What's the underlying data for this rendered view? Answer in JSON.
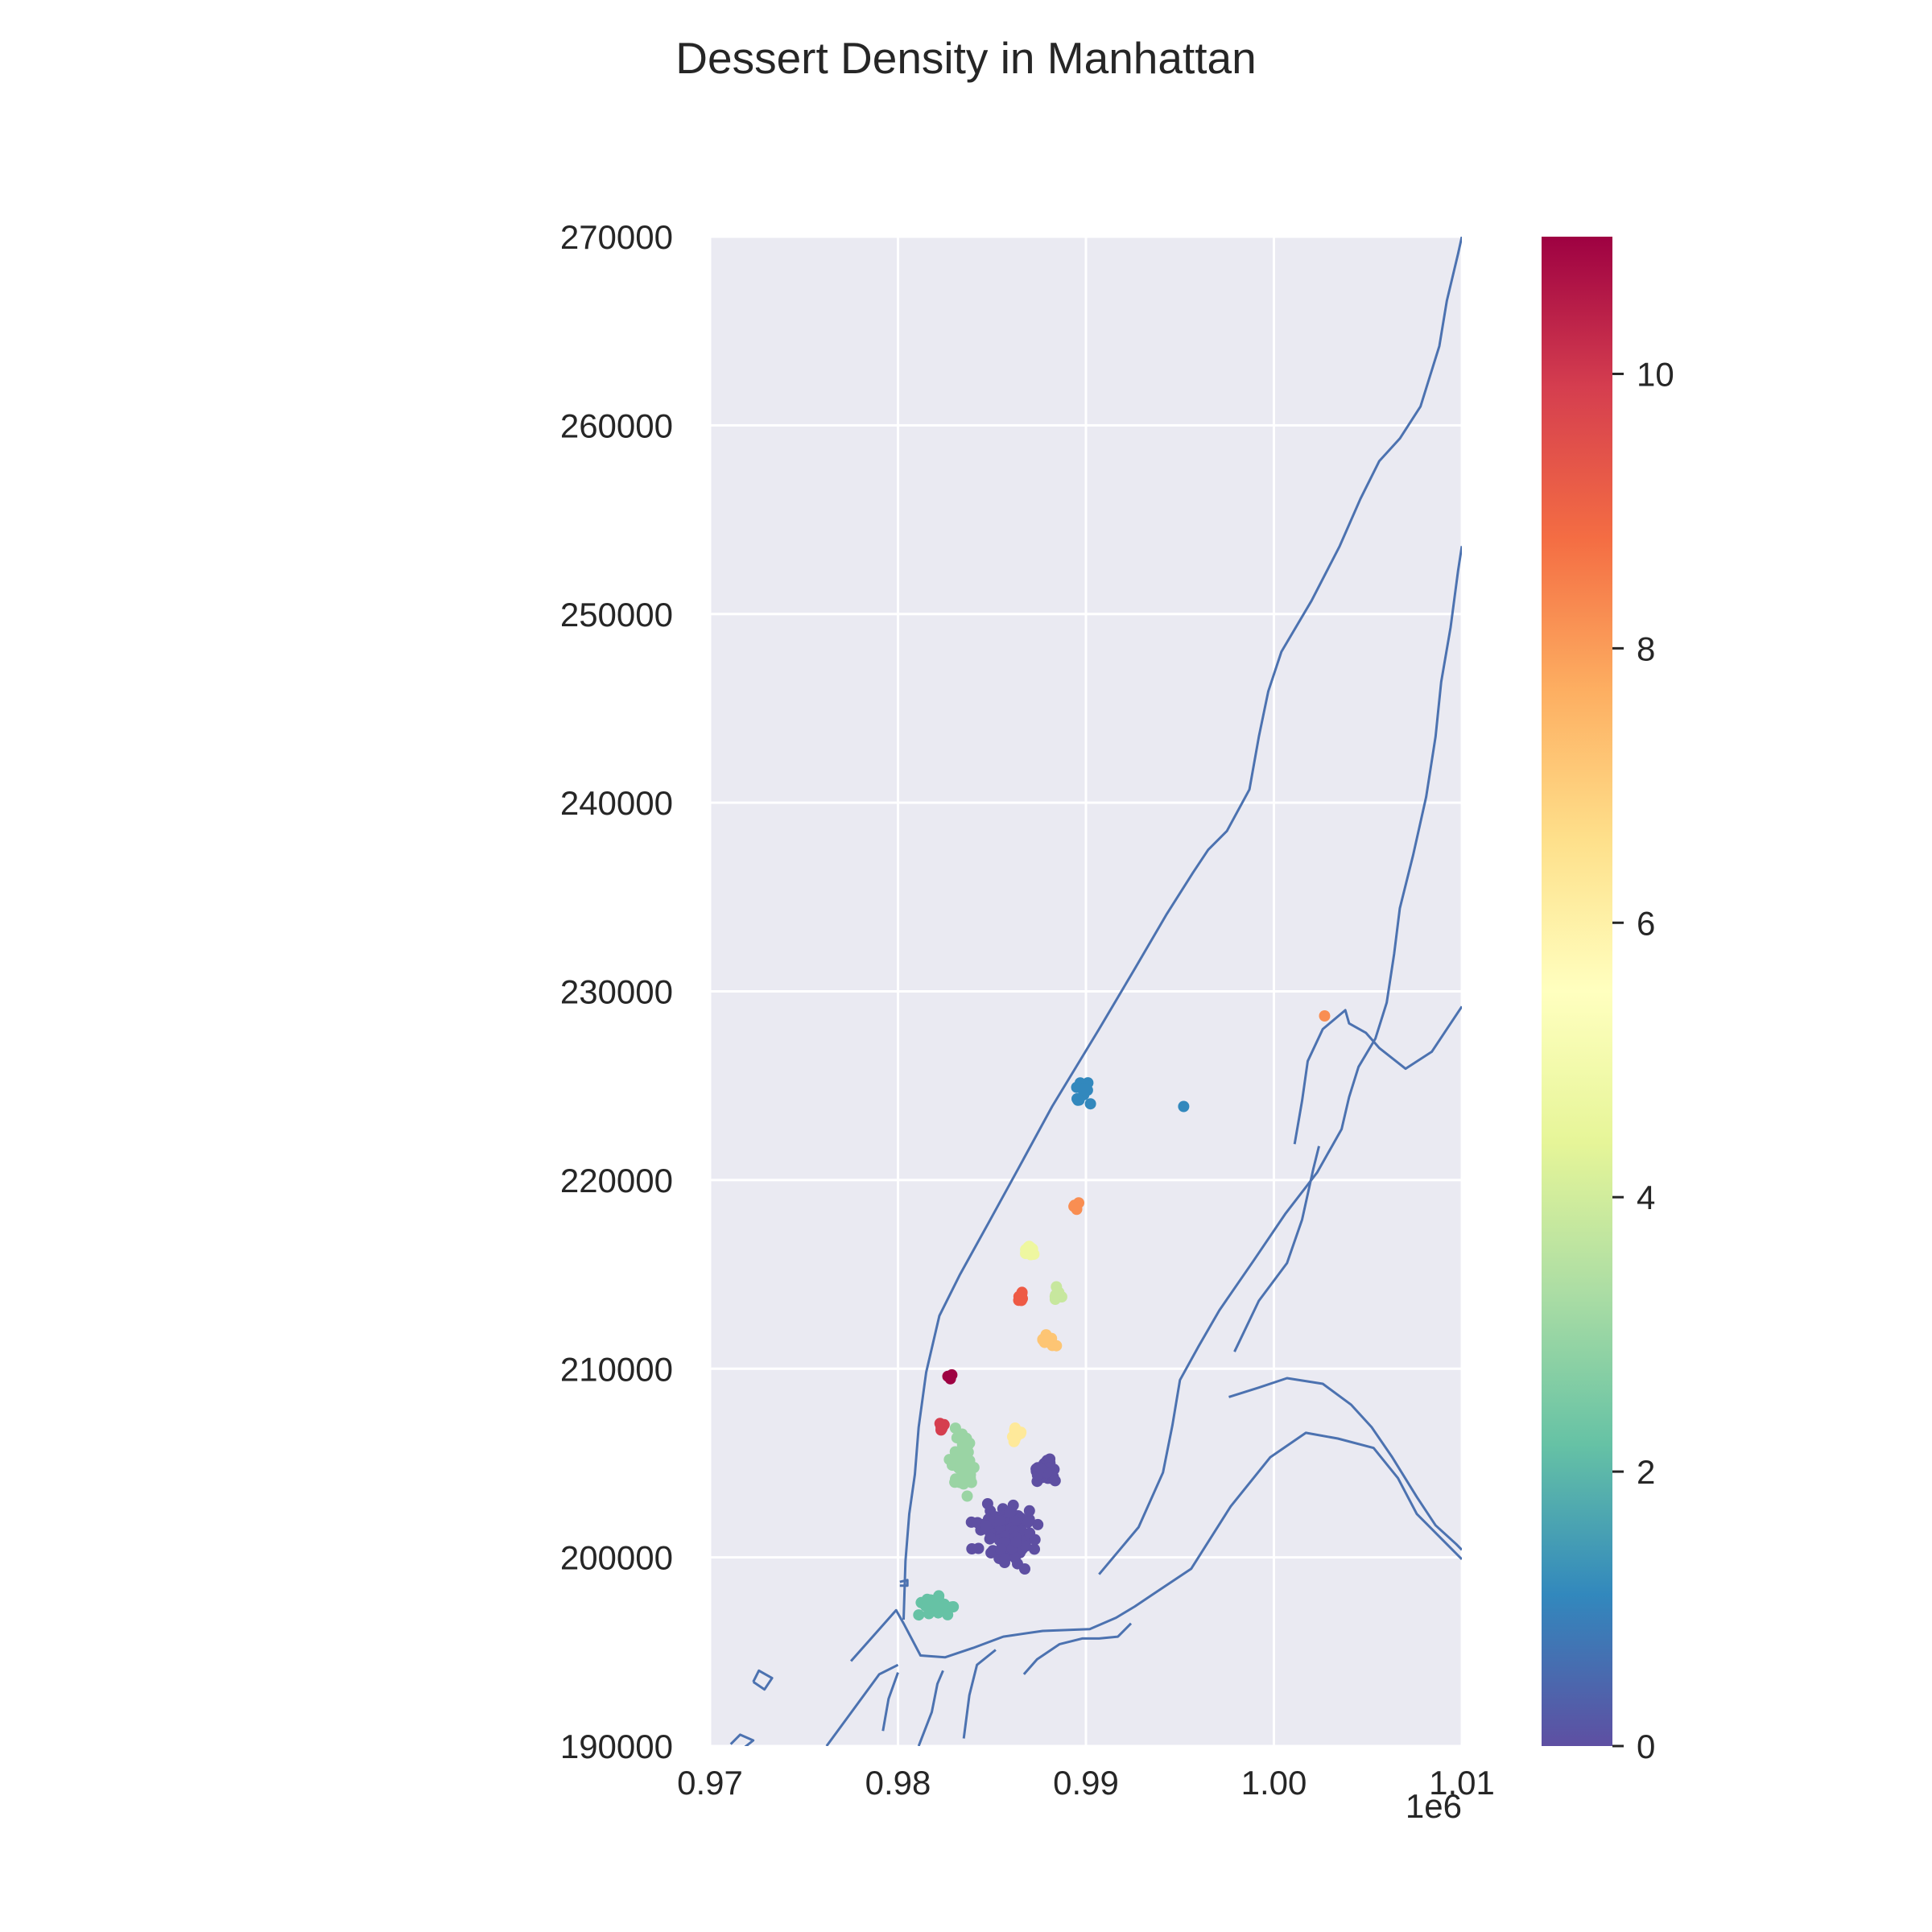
{
  "chart_data": {
    "type": "scatter",
    "title": "Dessert Density in Manhattan",
    "xlabel": "",
    "ylabel": "",
    "x_offset_label": "1e6",
    "xlim": [
      970000,
      1010000
    ],
    "ylim": [
      190000,
      270000
    ],
    "x_ticks": [
      970000,
      980000,
      990000,
      1000000,
      1010000
    ],
    "x_tick_labels": [
      "0.97",
      "0.98",
      "0.99",
      "1.00",
      "1.01"
    ],
    "y_ticks": [
      190000,
      200000,
      210000,
      220000,
      230000,
      240000,
      250000,
      260000,
      270000
    ],
    "y_tick_labels": [
      "190000",
      "200000",
      "210000",
      "220000",
      "230000",
      "240000",
      "250000",
      "260000",
      "270000"
    ],
    "grid": true,
    "colors": {
      "axes_background": "#eaeaf2",
      "grid": "#ffffff",
      "outline": "#4c72b0",
      "text": "#262626"
    },
    "colorbar": {
      "colormap": "Spectral_r",
      "range": [
        0,
        11
      ],
      "ticks": [
        0,
        2,
        4,
        6,
        8,
        10
      ],
      "tick_labels": [
        "0",
        "2",
        "4",
        "6",
        "8",
        "10"
      ],
      "stops": [
        "#5e4fa2",
        "#3288bd",
        "#66c2a5",
        "#abdda4",
        "#e6f598",
        "#ffffbf",
        "#fee08b",
        "#fdae61",
        "#f46d43",
        "#d53e4f",
        "#9e0142"
      ]
    },
    "clusters": [
      {
        "label": 0,
        "color": "#5e4fa2",
        "center": [
          985800,
          201200
        ],
        "spread": [
          1300,
          1300
        ],
        "count": 110
      },
      {
        "label": 0,
        "color": "#5e4fa2",
        "center": [
          987800,
          204600
        ],
        "spread": [
          650,
          450
        ],
        "count": 40
      },
      {
        "label": 1,
        "color": "#3288bd",
        "center": [
          990200,
          224500
        ],
        "spread": [
          700,
          600
        ],
        "count": 13
      },
      {
        "label": 1,
        "color": "#3288bd",
        "center": [
          995200,
          223900
        ],
        "spread": [
          0,
          0
        ],
        "count": 1
      },
      {
        "label": 2,
        "color": "#66c2a5",
        "center": [
          981900,
          197400
        ],
        "spread": [
          900,
          500
        ],
        "count": 20
      },
      {
        "label": 3,
        "color": "#9ad4a4",
        "center": [
          983500,
          205000
        ],
        "spread": [
          550,
          1300
        ],
        "count": 45
      },
      {
        "label": 4,
        "color": "#c7e79e",
        "center": [
          988500,
          213900
        ],
        "spread": [
          250,
          350
        ],
        "count": 8
      },
      {
        "label": 5,
        "color": "#eef7a0",
        "center": [
          987000,
          216300
        ],
        "spread": [
          250,
          300
        ],
        "count": 14
      },
      {
        "label": 6,
        "color": "#fee99a",
        "center": [
          986300,
          206400
        ],
        "spread": [
          200,
          500
        ],
        "count": 14
      },
      {
        "label": 7,
        "color": "#fdc574",
        "center": [
          987900,
          211500
        ],
        "spread": [
          450,
          250
        ],
        "count": 14
      },
      {
        "label": 8,
        "color": "#f98e52",
        "center": [
          989500,
          218700
        ],
        "spread": [
          200,
          250
        ],
        "count": 5
      },
      {
        "label": 8,
        "color": "#f98e52",
        "center": [
          1002700,
          228700
        ],
        "spread": [
          0,
          0
        ],
        "count": 1
      },
      {
        "label": 9,
        "color": "#ee5a45",
        "center": [
          986500,
          213800
        ],
        "spread": [
          120,
          250
        ],
        "count": 10
      },
      {
        "label": 10,
        "color": "#d53e4f",
        "center": [
          982300,
          206900
        ],
        "spread": [
          150,
          250
        ],
        "count": 8
      },
      {
        "label": 11,
        "color": "#9e0142",
        "center": [
          982700,
          209500
        ],
        "spread": [
          120,
          200
        ],
        "count": 4
      }
    ],
    "outline_polylines": [
      [
        [
          976200,
          190000
        ],
        [
          979000,
          193800
        ],
        [
          980000,
          194300
        ]
      ],
      [
        [
          977500,
          194500
        ],
        [
          979900,
          197200
        ],
        [
          980300,
          196500
        ],
        [
          981200,
          194800
        ],
        [
          982500,
          194700
        ],
        [
          984000,
          195200
        ],
        [
          985600,
          195800
        ],
        [
          987700,
          196100
        ],
        [
          990200,
          196200
        ],
        [
          991600,
          196800
        ],
        [
          992600,
          197400
        ],
        [
          993500,
          198000
        ],
        [
          995600,
          199400
        ],
        [
          997700,
          202700
        ],
        [
          999800,
          205300
        ],
        [
          1001700,
          206600
        ],
        [
          1003400,
          206300
        ],
        [
          1005300,
          205800
        ],
        [
          1006600,
          204200
        ],
        [
          1007600,
          202300
        ],
        [
          1009200,
          200700
        ],
        [
          1010000,
          199900
        ]
      ],
      [
        [
          980300,
          196700
        ],
        [
          980400,
          199800
        ],
        [
          980600,
          202300
        ],
        [
          980900,
          204400
        ],
        [
          981100,
          206900
        ],
        [
          981500,
          209800
        ],
        [
          982200,
          212800
        ],
        [
          983300,
          215000
        ],
        [
          984800,
          217700
        ],
        [
          986400,
          220600
        ],
        [
          988200,
          223900
        ],
        [
          990700,
          228000
        ],
        [
          992600,
          231200
        ],
        [
          994300,
          234100
        ],
        [
          995700,
          236300
        ],
        [
          996500,
          237500
        ],
        [
          997500,
          238500
        ],
        [
          998700,
          240700
        ],
        [
          999200,
          243500
        ],
        [
          999700,
          245900
        ],
        [
          1000400,
          248000
        ],
        [
          1002000,
          250700
        ],
        [
          1003500,
          253600
        ],
        [
          1004600,
          256100
        ],
        [
          1005600,
          258100
        ],
        [
          1006700,
          259300
        ],
        [
          1007800,
          261000
        ],
        [
          1008800,
          264200
        ],
        [
          1009200,
          266600
        ],
        [
          1009800,
          269100
        ],
        [
          1010000,
          270000
        ]
      ],
      [
        [
          990700,
          199100
        ],
        [
          992800,
          201600
        ],
        [
          994100,
          204500
        ],
        [
          994600,
          207000
        ],
        [
          995000,
          209400
        ],
        [
          996000,
          211200
        ],
        [
          997100,
          213100
        ],
        [
          998900,
          215700
        ],
        [
          1000600,
          218200
        ],
        [
          1002300,
          220400
        ],
        [
          1003600,
          222700
        ],
        [
          1004000,
          224400
        ],
        [
          1004500,
          226000
        ],
        [
          1005400,
          227500
        ],
        [
          1006000,
          229400
        ],
        [
          1006400,
          232000
        ],
        [
          1006700,
          234400
        ],
        [
          1007400,
          237200
        ],
        [
          1008100,
          240300
        ],
        [
          1008600,
          243500
        ],
        [
          1008900,
          246400
        ],
        [
          1009400,
          249300
        ],
        [
          1009800,
          252300
        ],
        [
          1010000,
          253600
        ]
      ],
      [
        [
          1001100,
          221900
        ],
        [
          1001500,
          224200
        ],
        [
          1001800,
          226300
        ],
        [
          1002600,
          228000
        ],
        [
          1003800,
          229000
        ],
        [
          1004000,
          228300
        ],
        [
          1004900,
          227800
        ],
        [
          1005600,
          227000
        ],
        [
          1007000,
          225900
        ],
        [
          1008400,
          226800
        ],
        [
          1009400,
          228300
        ],
        [
          1010000,
          229200
        ]
      ],
      [
        [
          997900,
          210900
        ],
        [
          999200,
          213600
        ],
        [
          1000700,
          215600
        ],
        [
          1001500,
          217900
        ],
        [
          1002100,
          220600
        ],
        [
          1002400,
          221800
        ]
      ],
      [
        [
          997600,
          208500
        ],
        [
          999200,
          209000
        ],
        [
          1000700,
          209500
        ],
        [
          1002600,
          209200
        ],
        [
          1004100,
          208100
        ],
        [
          1005200,
          206900
        ],
        [
          1006300,
          205300
        ],
        [
          1007600,
          203200
        ],
        [
          1008600,
          201700
        ],
        [
          1009700,
          200700
        ],
        [
          1010000,
          200400
        ]
      ],
      [
        [
          979200,
          190800
        ],
        [
          979500,
          192500
        ],
        [
          980000,
          193900
        ]
      ],
      [
        [
          981100,
          190000
        ],
        [
          981800,
          191800
        ],
        [
          982100,
          193300
        ],
        [
          982400,
          194000
        ]
      ],
      [
        [
          983500,
          190400
        ],
        [
          983800,
          192700
        ],
        [
          984200,
          194300
        ],
        [
          985200,
          195100
        ]
      ],
      [
        [
          986700,
          193800
        ],
        [
          987400,
          194600
        ],
        [
          988600,
          195400
        ],
        [
          989800,
          195700
        ],
        [
          990700,
          195700
        ],
        [
          991700,
          195800
        ],
        [
          992400,
          196500
        ]
      ],
      [
        [
          972300,
          193400
        ],
        [
          972600,
          194000
        ],
        [
          973300,
          193600
        ],
        [
          972900,
          193000
        ],
        [
          972300,
          193400
        ]
      ],
      [
        [
          971100,
          190100
        ],
        [
          971600,
          190600
        ],
        [
          972300,
          190300
        ],
        [
          971800,
          189900
        ]
      ],
      [
        [
          980100,
          198700
        ],
        [
          980500,
          198800
        ],
        [
          980500,
          198500
        ],
        [
          980100,
          198500
        ]
      ]
    ]
  }
}
